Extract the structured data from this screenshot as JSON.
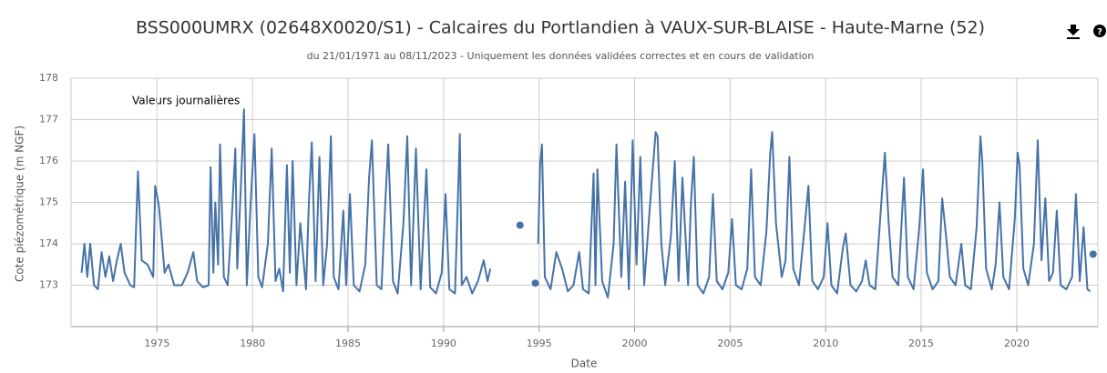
{
  "chart_data": {
    "type": "line",
    "title": "BSS000UMRX (02648X0020/S1) - Calcaires du Portlandien à VAUX-SUR-BLAISE - Haute-Marne (52)",
    "subtitle": "du 21/01/1971 au 08/11/2023 - Uniquement les données validées correctes et en cours de validation",
    "annotation": "Valeurs journalières",
    "x_label": "Date",
    "y_label": "Cote piézométrique (m NGF)",
    "xlim": [
      1970.5,
      2024.25
    ],
    "xticks": [
      1975,
      1980,
      1985,
      1990,
      1995,
      2000,
      2005,
      2010,
      2015,
      2020
    ],
    "ylim": [
      172,
      178
    ],
    "yticks": [
      173,
      174,
      175,
      176,
      177,
      178
    ],
    "grid": true,
    "x": [
      1971.05,
      1971.2,
      1971.35,
      1971.5,
      1971.7,
      1971.9,
      1972.1,
      1972.3,
      1972.5,
      1972.7,
      1972.9,
      1973.1,
      1973.3,
      1973.6,
      1973.8,
      1974.0,
      1974.2,
      1974.5,
      1974.8,
      1974.9,
      1975.1,
      1975.4,
      1975.6,
      1975.9,
      1976.3,
      1976.6,
      1976.9,
      1977.1,
      1977.4,
      1977.7,
      1977.8,
      1977.95,
      1978.05,
      1978.2,
      1978.3,
      1978.5,
      1978.7,
      1978.9,
      1979.1,
      1979.2,
      1979.4,
      1979.55,
      1979.7,
      1979.9,
      1980.1,
      1980.3,
      1980.5,
      1980.8,
      1981.0,
      1981.2,
      1981.4,
      1981.6,
      1981.8,
      1981.95,
      1982.1,
      1982.3,
      1982.5,
      1982.8,
      1982.95,
      1983.1,
      1983.3,
      1983.5,
      1983.7,
      1983.9,
      1984.1,
      1984.25,
      1984.5,
      1984.75,
      1984.9,
      1985.1,
      1985.3,
      1985.6,
      1985.9,
      1986.1,
      1986.25,
      1986.5,
      1986.75,
      1986.95,
      1987.1,
      1987.35,
      1987.6,
      1987.9,
      1988.1,
      1988.3,
      1988.55,
      1988.8,
      1989.1,
      1989.3,
      1989.6,
      1989.9,
      1990.1,
      1990.3,
      1990.6,
      1990.85,
      1990.95,
      1991.2,
      1991.5,
      1991.8,
      1992.1,
      1992.3,
      1992.45,
      1993.0,
      1994.0,
      1994.3,
      1994.8,
      1994.85,
      1994.95,
      1995.05,
      1995.15,
      1995.3,
      1995.6,
      1995.9,
      1996.2,
      1996.5,
      1996.8,
      1997.1,
      1997.3,
      1997.6,
      1997.85,
      1997.95,
      1998.05,
      1998.3,
      1998.6,
      1998.9,
      1999.05,
      1999.3,
      1999.5,
      1999.7,
      1999.9,
      2000.1,
      2000.3,
      2000.5,
      2000.8,
      2001.1,
      2001.2,
      2001.4,
      2001.6,
      2001.9,
      2002.1,
      2002.3,
      2002.5,
      2002.8,
      2002.95,
      2003.1,
      2003.3,
      2003.6,
      2003.9,
      2004.1,
      2004.3,
      2004.6,
      2004.9,
      2005.1,
      2005.3,
      2005.6,
      2005.9,
      2006.1,
      2006.3,
      2006.6,
      2006.9,
      2007.1,
      2007.2,
      2007.4,
      2007.7,
      2007.9,
      2008.1,
      2008.3,
      2008.6,
      2008.9,
      2009.1,
      2009.3,
      2009.6,
      2009.9,
      2010.1,
      2010.3,
      2010.6,
      2010.9,
      2011.05,
      2011.3,
      2011.6,
      2011.9,
      2012.1,
      2012.3,
      2012.6,
      2012.9,
      2013.1,
      2013.3,
      2013.5,
      2013.8,
      2014.1,
      2014.3,
      2014.6,
      2014.9,
      2015.1,
      2015.3,
      2015.6,
      2015.9,
      2016.1,
      2016.3,
      2016.5,
      2016.8,
      2017.1,
      2017.3,
      2017.6,
      2017.9,
      2018.1,
      2018.2,
      2018.4,
      2018.7,
      2018.9,
      2019.1,
      2019.3,
      2019.6,
      2019.9,
      2020.05,
      2020.15,
      2020.35,
      2020.6,
      2020.9,
      2021.1,
      2021.3,
      2021.5,
      2021.7,
      2021.9,
      2022.1,
      2022.3,
      2022.6,
      2022.9,
      2023.1,
      2023.3,
      2023.5,
      2023.7,
      2023.85,
      2023.9,
      2024.0
    ],
    "series": [
      {
        "name": "Valeurs journalières",
        "color": "#4572a7",
        "values": [
          173.3,
          174.0,
          173.2,
          174.0,
          173.0,
          172.9,
          173.8,
          173.2,
          173.7,
          173.1,
          173.6,
          174.0,
          173.3,
          173.0,
          172.95,
          175.75,
          173.6,
          173.5,
          173.2,
          175.4,
          174.9,
          173.3,
          173.5,
          173.0,
          173.0,
          173.3,
          173.8,
          173.1,
          172.95,
          173.0,
          175.85,
          173.3,
          175.0,
          173.5,
          176.4,
          173.2,
          173.0,
          174.5,
          176.3,
          173.4,
          175.5,
          177.25,
          173.0,
          175.0,
          176.65,
          173.2,
          172.95,
          174.0,
          176.3,
          173.1,
          173.4,
          172.85,
          175.9,
          173.3,
          176.0,
          173.0,
          174.5,
          172.9,
          175.0,
          176.45,
          173.1,
          176.1,
          173.0,
          174.0,
          176.6,
          173.2,
          172.9,
          174.8,
          173.0,
          175.2,
          173.0,
          172.85,
          173.5,
          175.6,
          176.5,
          173.0,
          172.9,
          175.0,
          176.4,
          173.1,
          172.8,
          174.5,
          176.6,
          173.0,
          176.3,
          172.9,
          175.8,
          172.95,
          172.8,
          173.3,
          175.2,
          172.9,
          172.8,
          176.65,
          173.0,
          173.2,
          172.8,
          173.1,
          173.6,
          173.1,
          173.4,
          null,
          174.45,
          null,
          173.05,
          null,
          174.0,
          175.9,
          176.4,
          173.2,
          172.9,
          173.8,
          173.4,
          172.85,
          173.0,
          173.8,
          172.9,
          172.8,
          175.7,
          173.0,
          175.8,
          173.1,
          172.7,
          174.0,
          176.4,
          173.2,
          175.5,
          172.9,
          176.5,
          173.5,
          176.1,
          173.0,
          174.9,
          176.7,
          176.6,
          174.0,
          173.0,
          174.2,
          176.0,
          173.1,
          175.6,
          173.0,
          175.0,
          176.1,
          173.0,
          172.8,
          173.2,
          175.2,
          173.1,
          172.9,
          173.3,
          174.6,
          173.0,
          172.9,
          173.4,
          175.8,
          173.2,
          173.0,
          174.3,
          176.2,
          176.7,
          174.5,
          173.2,
          173.6,
          176.1,
          173.4,
          173.0,
          174.4,
          175.4,
          173.1,
          172.9,
          173.2,
          174.5,
          173.0,
          172.8,
          173.9,
          174.25,
          173.0,
          172.85,
          173.1,
          173.6,
          173.0,
          172.9,
          174.9,
          176.2,
          174.5,
          173.2,
          173.0,
          175.6,
          173.2,
          172.9,
          174.4,
          175.8,
          173.3,
          172.9,
          173.1,
          175.1,
          174.2,
          173.2,
          173.0,
          174.0,
          173.0,
          172.9,
          174.4,
          176.6,
          176.0,
          173.4,
          172.9,
          173.5,
          175.0,
          173.2,
          172.9,
          174.6,
          176.2,
          175.9,
          173.4,
          173.0,
          174.0,
          176.5,
          173.6,
          175.1,
          173.1,
          173.3,
          174.8,
          173.0,
          172.9,
          173.2,
          175.2,
          173.1,
          174.4,
          172.9,
          172.85,
          null,
          173.75
        ]
      }
    ]
  }
}
